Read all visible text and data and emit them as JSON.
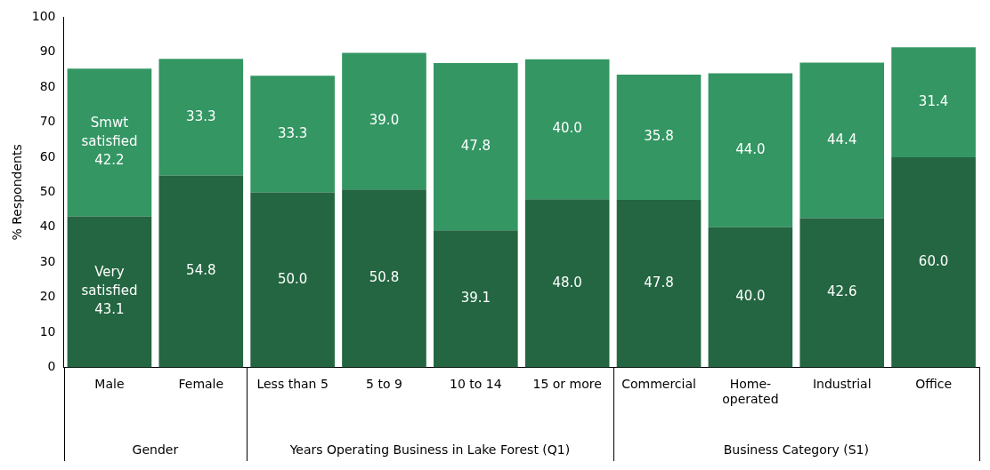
{
  "chart_data": {
    "type": "bar",
    "stacked": true,
    "ylabel": "% Respondents",
    "categories": [
      "Male",
      "Female",
      "Less than 5",
      "5 to 9",
      "10 to 14",
      "15 or more",
      "Commercial",
      "Home-operated",
      "Industrial",
      "Office"
    ],
    "series": [
      {
        "name": "Very satisfied",
        "color": "#236641",
        "values": [
          43.1,
          54.8,
          50.0,
          50.8,
          39.1,
          48.0,
          47.8,
          40.0,
          42.6,
          60.0
        ],
        "value_labels": [
          "43.1",
          "54.8",
          "50.0",
          "50.8",
          "39.1",
          "48.0",
          "47.8",
          "40.0",
          "42.6",
          "60.0"
        ]
      },
      {
        "name": "Smwt satisfied",
        "color": "#339663",
        "values": [
          42.2,
          33.3,
          33.3,
          39.0,
          47.8,
          40.0,
          35.8,
          44.0,
          44.4,
          31.4
        ],
        "value_labels": [
          "42.2",
          "33.3",
          "33.3",
          "39.0",
          "47.8",
          "40.0",
          "35.8",
          "44.0",
          "44.4",
          "31.4"
        ]
      }
    ],
    "ylim": [
      0,
      100
    ],
    "yticks": [
      0,
      10,
      20,
      30,
      40,
      50,
      60,
      70,
      80,
      90,
      100
    ],
    "grid": false,
    "legend": false,
    "annotations": [
      "Gender",
      "Years Operating Business in Lake Forest (Q1)",
      "Business Category (S1)"
    ]
  }
}
